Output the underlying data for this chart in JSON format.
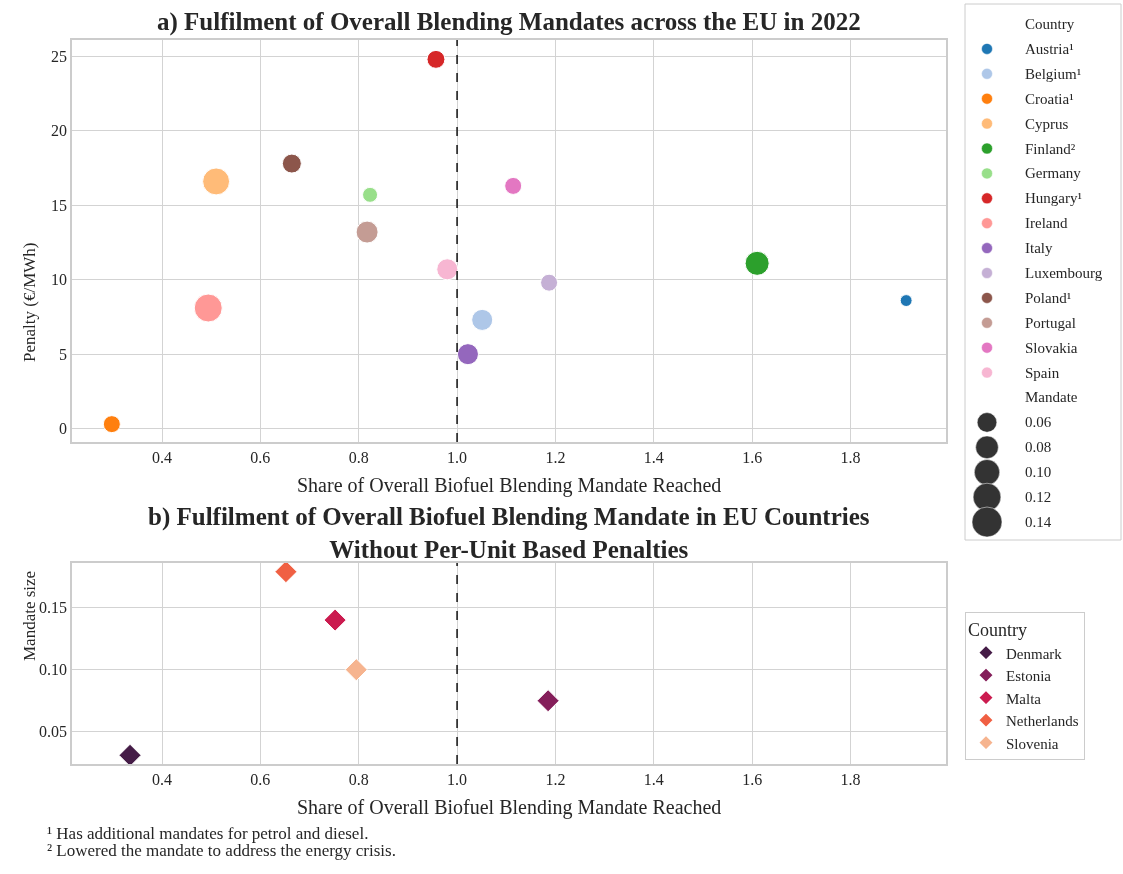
{
  "chart_data": [
    {
      "type": "bubble",
      "title": "a) Fulfilment of Overall Blending Mandates across the EU in 2022",
      "xlabel": "Share of Overall Biofuel Blending Mandate Reached",
      "ylabel": "Penalty (€/MWh)",
      "legend_title": "Country",
      "xlim": [
        0.217,
        1.994
      ],
      "xticks": [
        0.4,
        0.6,
        0.8,
        {
          "value": 1.0,
          "label": "1.0"
        },
        1.2,
        1.4,
        1.6,
        1.8
      ],
      "ylim": [
        -0.9,
        26.1
      ],
      "yticks": [
        0,
        5,
        10,
        15,
        20,
        25
      ],
      "grid": true,
      "legend": "top right",
      "marker": "circle",
      "annotations": [
        "Mandate"
      ],
      "size_legend": [
        0.06,
        0.08,
        {
          "value": 0.1,
          "label": "0.10"
        },
        0.12,
        0.14
      ],
      "ref_lines": [
        {
          "axis": "x",
          "value": 1.0,
          "color": "#333333",
          "line_style": "dashed"
        }
      ],
      "series": [
        {
          "name": "Austria¹",
          "color": "#1f77b4",
          "x": [
            1.913
          ],
          "values": [
            8.6
          ],
          "sizes": [
            0.022
          ]
        },
        {
          "name": "Belgium¹",
          "color": "#aec7e8",
          "x": [
            1.051
          ],
          "values": [
            7.3
          ],
          "sizes": [
            0.069
          ]
        },
        {
          "name": "Croatia¹",
          "color": "#ff7f0e",
          "x": [
            0.298
          ],
          "values": [
            0.3
          ],
          "sizes": [
            0.045
          ]
        },
        {
          "name": "Cyprus",
          "color": "#ffbb78",
          "x": [
            0.51
          ],
          "values": [
            16.6
          ],
          "sizes": [
            0.113
          ]
        },
        {
          "name": "Finland²",
          "color": "#2ca02c",
          "x": [
            1.61
          ],
          "values": [
            11.1
          ],
          "sizes": [
            0.09
          ]
        },
        {
          "name": "Germany",
          "color": "#98df8a",
          "x": [
            0.823
          ],
          "values": [
            15.7
          ],
          "sizes": [
            0.035
          ]
        },
        {
          "name": "Hungary¹",
          "color": "#d62728",
          "x": [
            0.957
          ],
          "values": [
            24.8
          ],
          "sizes": [
            0.05
          ]
        },
        {
          "name": "Ireland",
          "color": "#ff9896",
          "x": [
            0.494
          ],
          "values": [
            8.1
          ],
          "sizes": [
            0.122
          ]
        },
        {
          "name": "Italy",
          "color": "#9467bd",
          "x": [
            1.022
          ],
          "values": [
            5.0
          ],
          "sizes": [
            0.069
          ]
        },
        {
          "name": "Luxembourg",
          "color": "#c5b0d5",
          "x": [
            1.187
          ],
          "values": [
            9.8
          ],
          "sizes": [
            0.045
          ]
        },
        {
          "name": "Poland¹",
          "color": "#8c564b",
          "x": [
            0.664
          ],
          "values": [
            17.8
          ],
          "sizes": [
            0.056
          ]
        },
        {
          "name": "Portugal",
          "color": "#c49c94",
          "x": [
            0.817
          ],
          "values": [
            13.2
          ],
          "sizes": [
            0.075
          ]
        },
        {
          "name": "Slovakia",
          "color": "#e377c2",
          "x": [
            1.114
          ],
          "values": [
            16.3
          ],
          "sizes": [
            0.045
          ]
        },
        {
          "name": "Spain",
          "color": "#f7b6d2",
          "x": [
            0.98
          ],
          "values": [
            10.7
          ],
          "sizes": [
            0.069
          ]
        }
      ]
    },
    {
      "type": "scatter",
      "title": "b) Fulfilment of Overall Biofuel Blending Mandate in EU Countries\nWithout Per-Unit Based Penalties",
      "xlabel": "Share of Overall Biofuel Blending Mandate Reached",
      "ylabel": "Mandate size",
      "legend_title": "Country",
      "xlim": [
        0.217,
        1.994
      ],
      "xticks": [
        0.4,
        0.6,
        0.8,
        {
          "value": 1.0,
          "label": "1.0"
        },
        1.2,
        1.4,
        1.6,
        1.8
      ],
      "ylim": [
        0.024,
        0.186
      ],
      "yticks": [
        0.05,
        {
          "value": 0.1,
          "label": "0.10"
        },
        0.15
      ],
      "grid": true,
      "legend": "right",
      "marker": "diamond",
      "ref_lines": [
        {
          "axis": "x",
          "value": 1.0,
          "color": "#333333",
          "line_style": "dashed"
        }
      ],
      "annotations": [
        "¹ Has additional mandates for petrol and diesel.",
        "² Lowered the mandate to address the energy crisis."
      ],
      "series": [
        {
          "name": "Denmark",
          "color": "#451c47",
          "x": [
            0.335
          ],
          "values": [
            0.031
          ]
        },
        {
          "name": "Estonia",
          "color": "#841e5a",
          "x": [
            1.185
          ],
          "values": [
            0.075
          ]
        },
        {
          "name": "Malta",
          "color": "#cb1b4f",
          "x": [
            0.752
          ],
          "values": [
            0.14
          ]
        },
        {
          "name": "Netherlands",
          "color": "#f06043",
          "x": [
            0.652
          ],
          "values": [
            0.179
          ]
        },
        {
          "name": "Slovenia",
          "color": "#f6b48f",
          "x": [
            0.795
          ],
          "values": [
            0.1
          ]
        }
      ]
    }
  ]
}
